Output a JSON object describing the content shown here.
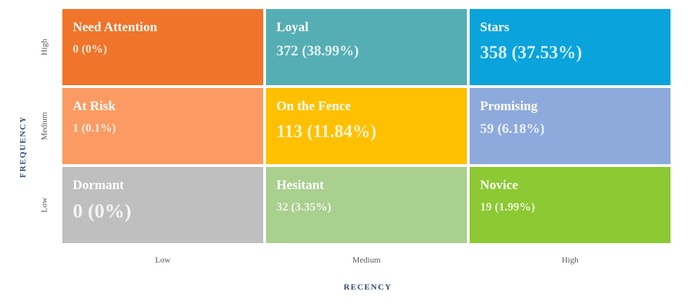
{
  "y_axis": {
    "title": "FREQUENCY",
    "labels": [
      "High",
      "Medium",
      "Low"
    ]
  },
  "x_axis": {
    "title": "RECENCY",
    "labels": [
      "Low",
      "Medium",
      "High"
    ]
  },
  "cells": [
    [
      {
        "label": "Need Attention",
        "value": "0 (0%)"
      },
      {
        "label": "Loyal",
        "value": "372 (38.99%)"
      },
      {
        "label": "Stars",
        "value": "358 (37.53%)"
      }
    ],
    [
      {
        "label": "At Risk",
        "value": "1 (0.1%)"
      },
      {
        "label": "On the Fence",
        "value": "113 (11.84%)"
      },
      {
        "label": "Promising",
        "value": "59 (6.18%)"
      }
    ],
    [
      {
        "label": "Dormant",
        "value": "0 (0%)"
      },
      {
        "label": "Hesitant",
        "value": "32 (3.35%)"
      },
      {
        "label": "Novice",
        "value": "19 (1.99%)"
      }
    ]
  ]
}
